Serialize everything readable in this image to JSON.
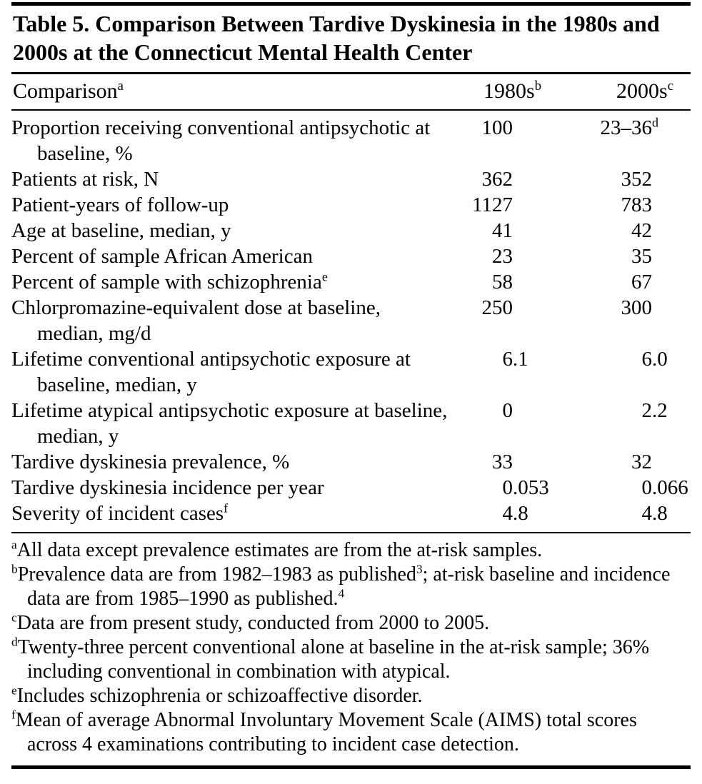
{
  "table": {
    "title": "Table 5. Comparison Between Tardive Dyskinesia in the 1980s and 2000s at the Connecticut Mental Health Center",
    "header": {
      "comparison": "Comparison",
      "comparison_sup": "a",
      "col1980": "1980s",
      "col1980_sup": "b",
      "col2000": "2000s",
      "col2000_sup": "c"
    },
    "rows": [
      {
        "label": "Proportion receiving conventional antipsychotic at baseline, %",
        "v1": {
          "i": "100"
        },
        "v2": {
          "i": "23–36",
          "s": "d"
        }
      },
      {
        "label": "Patients at risk, N",
        "v1": {
          "i": "362"
        },
        "v2": {
          "i": "352"
        }
      },
      {
        "label": "Patient-years of follow-up",
        "v1": {
          "i": "1127"
        },
        "v2": {
          "i": "783"
        }
      },
      {
        "label": "Age at baseline, median, y",
        "v1": {
          "i": "41"
        },
        "v2": {
          "i": "42"
        }
      },
      {
        "label": "Percent of sample African American",
        "v1": {
          "i": "23"
        },
        "v2": {
          "i": "35"
        }
      },
      {
        "label": "Percent of sample with schizophrenia",
        "label_sup": "e",
        "v1": {
          "i": "58"
        },
        "v2": {
          "i": "67"
        }
      },
      {
        "label": "Chlorpromazine-equivalent dose at baseline, median, mg/d",
        "v1": {
          "i": "250"
        },
        "v2": {
          "i": "300"
        }
      },
      {
        "label": "Lifetime conventional antipsychotic exposure at baseline, median, y",
        "v1": {
          "i": "6",
          "f": ".1"
        },
        "v2": {
          "i": "6",
          "f": ".0"
        }
      },
      {
        "label": "Lifetime atypical antipsychotic exposure at baseline, median, y",
        "v1": {
          "i": "0"
        },
        "v2": {
          "i": "2",
          "f": ".2"
        }
      },
      {
        "label": "Tardive dyskinesia prevalence, %",
        "v1": {
          "i": "33"
        },
        "v2": {
          "i": "32"
        }
      },
      {
        "label": "Tardive dyskinesia incidence per year",
        "v1": {
          "i": "0",
          "f": ".053"
        },
        "v2": {
          "i": "0",
          "f": ".066"
        }
      },
      {
        "label": "Severity of incident cases",
        "label_sup": "f",
        "v1": {
          "i": "4",
          "f": ".8"
        },
        "v2": {
          "i": "4",
          "f": ".8"
        }
      }
    ],
    "footnotes": [
      {
        "marker": "a",
        "t1": "All data except prevalence estimates are from the at-risk samples."
      },
      {
        "marker": "b",
        "t1": "Prevalence data are from 1982–1983 as published",
        "s1": "3",
        "t2": "; at-risk baseline and incidence data are from 1985–1990 as published.",
        "s2": "4"
      },
      {
        "marker": "c",
        "t1": "Data are from present study, conducted from 2000 to 2005."
      },
      {
        "marker": "d",
        "t1": "Twenty-three percent conventional alone at baseline in the at-risk sample; 36% including conventional in combination with atypical."
      },
      {
        "marker": "e",
        "t1": "Includes schizophrenia or schizoaffective disorder."
      },
      {
        "marker": "f",
        "t1": "Mean of average Abnormal Involuntary Movement Scale (AIMS) total scores across 4 examinations contributing to incident case detection."
      }
    ]
  }
}
